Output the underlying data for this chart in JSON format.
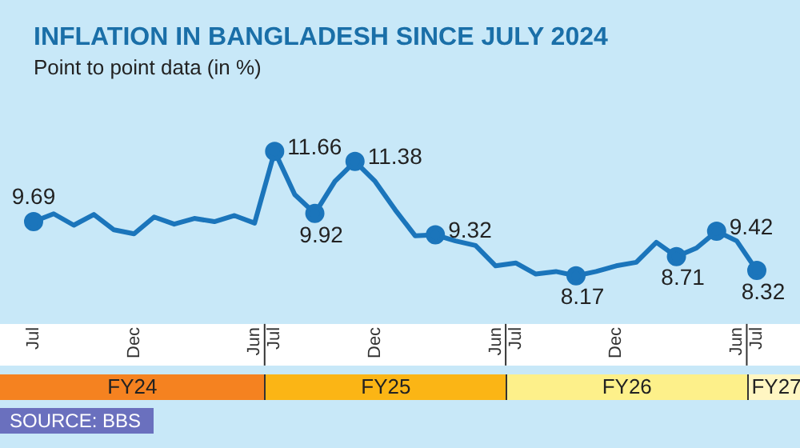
{
  "chart_data": {
    "type": "line",
    "title": "INFLATION IN BANGLADESH SINCE JULY 2024",
    "subtitle": "Point to point data (in %)",
    "x": [
      "2023-07",
      "2023-08",
      "2023-09",
      "2023-10",
      "2023-11",
      "2023-12",
      "2024-01",
      "2024-02",
      "2024-03",
      "2024-04",
      "2024-05",
      "2024-06",
      "2024-07",
      "2024-08",
      "2024-09",
      "2024-10",
      "2024-11",
      "2024-12",
      "2025-01",
      "2025-02",
      "2025-03",
      "2025-04",
      "2025-05",
      "2025-06",
      "2025-07",
      "2025-08",
      "2025-09",
      "2025-10",
      "2025-11",
      "2025-12",
      "2026-01",
      "2026-02",
      "2026-03",
      "2026-04",
      "2026-05",
      "2026-06",
      "2026-07"
    ],
    "series": [
      {
        "color": "#1b75bb",
        "values": [
          9.69,
          9.91,
          9.59,
          9.89,
          9.46,
          9.35,
          9.82,
          9.62,
          9.78,
          9.69,
          9.86,
          9.65,
          11.66,
          10.45,
          9.92,
          10.82,
          11.38,
          10.82,
          10.02,
          9.29,
          9.32,
          9.15,
          9.02,
          8.45,
          8.53,
          8.22,
          8.29,
          8.17,
          8.29,
          8.45,
          8.55,
          9.11,
          8.71,
          8.95,
          9.42,
          9.15,
          8.32
        ],
        "value_labels": [
          "9.69",
          null,
          null,
          null,
          null,
          null,
          null,
          null,
          null,
          null,
          null,
          null,
          "11.66",
          null,
          "9.92",
          null,
          "11.38",
          null,
          null,
          null,
          "9.32",
          null,
          null,
          null,
          null,
          null,
          null,
          "8.17",
          null,
          null,
          null,
          null,
          "8.71",
          null,
          "9.42",
          null,
          "8.32"
        ]
      }
    ],
    "xlim": [
      "2023-07",
      "2026-07"
    ],
    "xticks": [
      {
        "value": "2023-07",
        "label": "Jul"
      },
      {
        "value": "2023-12",
        "label": "Dec"
      },
      {
        "value": "2024-06",
        "label": "Jun"
      },
      {
        "value": "2024-07",
        "label": "Jul"
      },
      {
        "value": "2024-12",
        "label": "Dec"
      },
      {
        "value": "2025-06",
        "label": "Jun"
      },
      {
        "value": "2025-07",
        "label": "Jul"
      },
      {
        "value": "2025-12",
        "label": "Dec"
      },
      {
        "value": "2026-06",
        "label": "Jun"
      },
      {
        "value": "2026-07",
        "label": "Jul"
      }
    ],
    "annotations": [
      "FY24",
      "FY25",
      "FY26",
      "FY27",
      "SOURCE: BBS"
    ],
    "grid": false,
    "legend": false
  }
}
